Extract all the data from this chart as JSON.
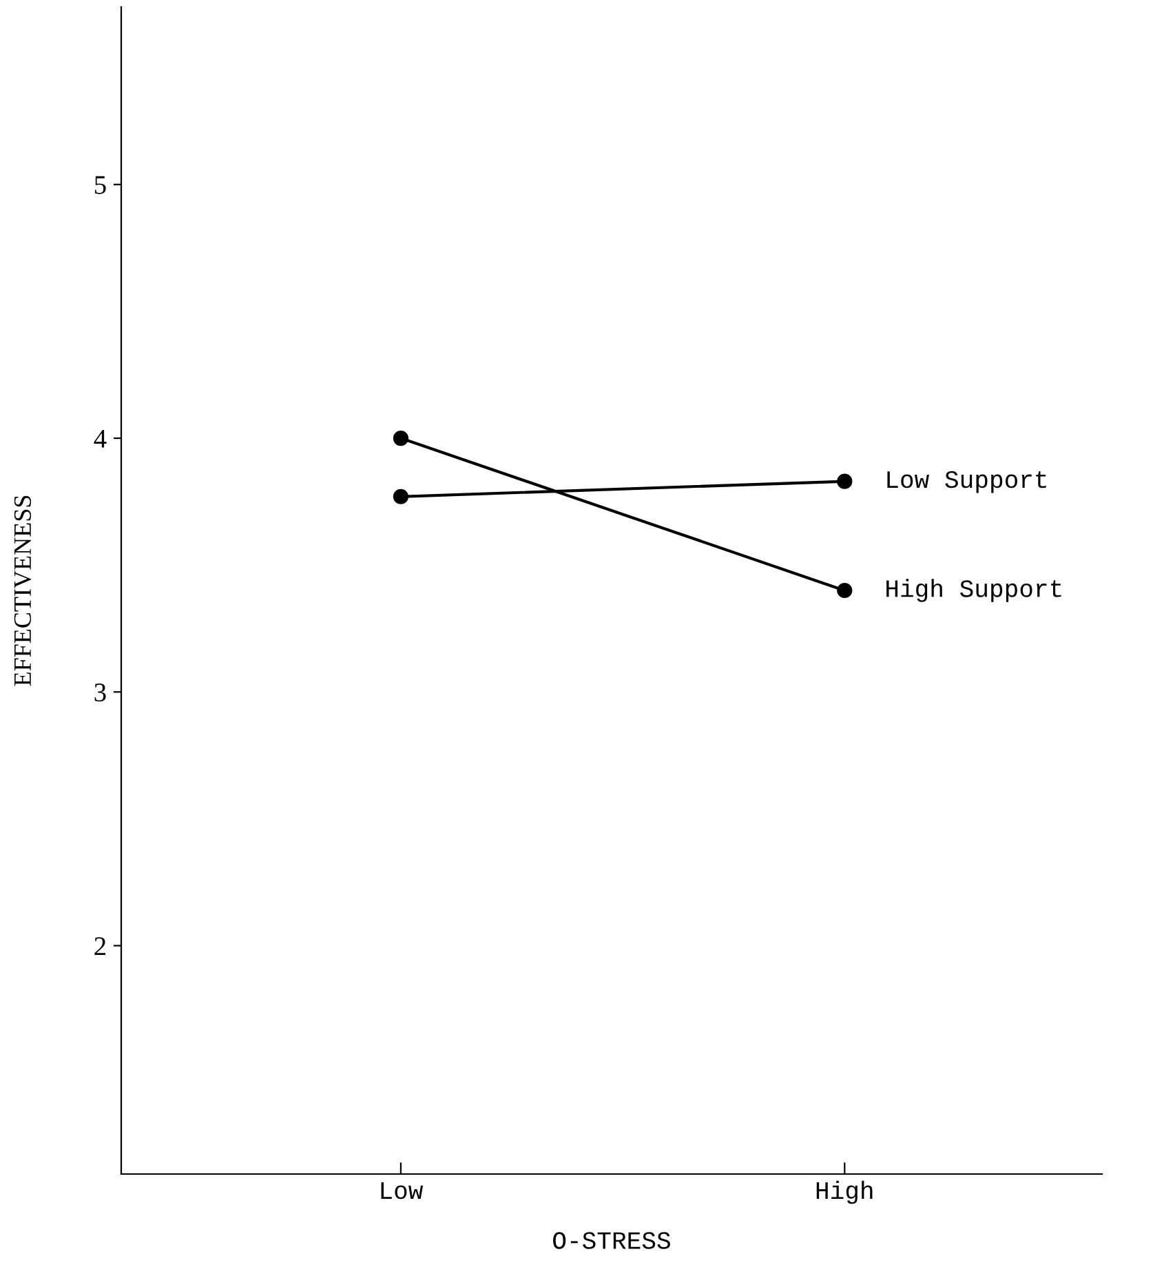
{
  "chart_data": {
    "type": "line",
    "xlabel": "O-STRESS",
    "ylabel": "EFFECTIVENESS",
    "categories": [
      "Low",
      "High"
    ],
    "series": [
      {
        "name": "Low Support",
        "color": "#000000",
        "values": [
          3.77,
          3.83
        ]
      },
      {
        "name": "High Support",
        "color": "#000000",
        "values": [
          4.0,
          3.4
        ]
      }
    ],
    "ylim": [
      1.1,
      5.7
    ],
    "yticks": [
      2,
      3,
      4,
      5
    ],
    "marker": "circle",
    "line_style": "solid",
    "grid": false,
    "legend": false
  }
}
